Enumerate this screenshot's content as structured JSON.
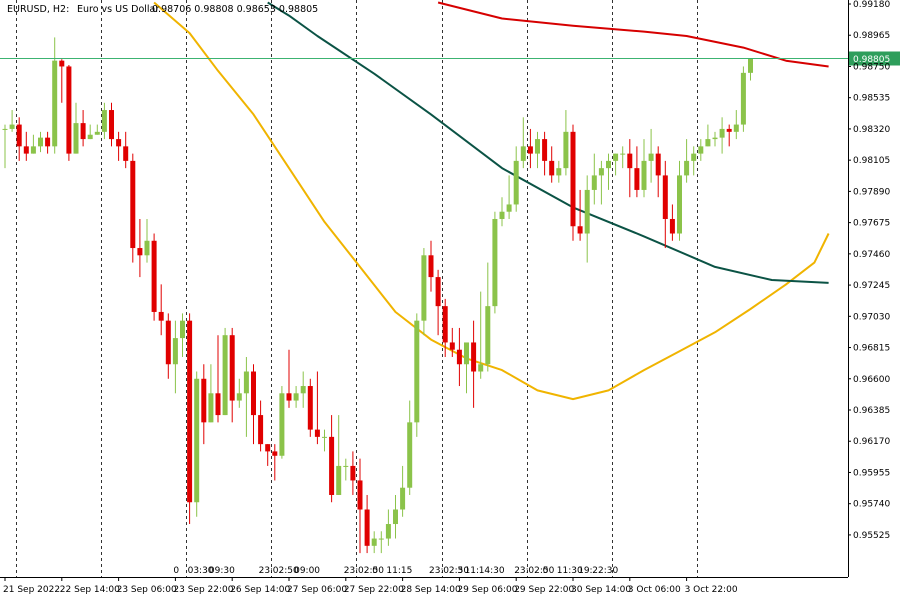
{
  "chart_data": {
    "type": "candlestick",
    "header": {
      "symbol": "EURUSD, H2:",
      "description": "Euro vs US Dollar",
      "ohlc": "0.98706 0.98808 0.98653 0.98805"
    },
    "y_ticks": [
      "0.99180",
      "0.98965",
      "0.98750",
      "0.98535",
      "0.98320",
      "0.98105",
      "0.97890",
      "0.97675",
      "0.97460",
      "0.97245",
      "0.97030",
      "0.96815",
      "0.96600",
      "0.96385",
      "0.96170",
      "0.95955",
      "0.95740",
      "0.95525"
    ],
    "ylim": [
      0.95435,
      0.9918
    ],
    "current_price_label": "0.98805",
    "current_price": 0.98805,
    "x_labels": [
      "21 Sep 2022",
      "22 Sep 14:00",
      "23 Sep 06:00",
      "23 Sep 22:00",
      "26 Sep 14:00",
      "27 Sep 06:00",
      "27 Sep 22:00",
      "28 Sep 14:00",
      "29 Sep 06:00",
      "29 Sep 22:00",
      "30 Sep 14:00",
      "3 Oct 06:00",
      "3 Oct 22:00"
    ],
    "x_label_index": [
      0,
      8,
      16,
      24,
      32,
      40,
      48,
      56,
      64,
      72,
      80,
      88,
      96
    ],
    "session_separators": [
      1,
      13,
      25,
      37,
      49,
      61,
      73,
      85,
      97
    ],
    "session_labels": [
      {
        "text": "0",
        "index": 24
      },
      {
        "text": "03:30",
        "index": 26
      },
      {
        "text": "09:30",
        "index": 29
      },
      {
        "text": "23:",
        "index": 36
      },
      {
        "text": "02:50",
        "index": 38
      },
      {
        "text": "09:00",
        "index": 41
      },
      {
        "text": "23:",
        "index": 48
      },
      {
        "text": "02:50",
        "index": 50
      },
      {
        "text": "0",
        "index": 52
      },
      {
        "text": "11:15",
        "index": 54
      },
      {
        "text": "23:",
        "index": 60
      },
      {
        "text": "02:50",
        "index": 62
      },
      {
        "text": "3",
        "index": 64
      },
      {
        "text": "11:",
        "index": 65
      },
      {
        "text": "14:30",
        "index": 67
      },
      {
        "text": "23:",
        "index": 72
      },
      {
        "text": "02:50",
        "index": 74
      },
      {
        "text": "0",
        "index": 76
      },
      {
        "text": "11:30",
        "index": 78
      },
      {
        "text": "19:",
        "index": 81
      },
      {
        "text": "22:30",
        "index": 83
      }
    ],
    "colors": {
      "bull": "#8bc34a",
      "bear": "#e00000",
      "ma_fast": "#f0b400",
      "ma_mid": "#0b5345",
      "ma_slow": "#d60000",
      "price_line": "#3cb371",
      "price_label_bg": "#2e9e5b"
    },
    "candles": [
      [
        0.9832,
        0.9832,
        0.9835,
        0.9805
      ],
      [
        0.9832,
        0.9835,
        0.9845,
        0.983
      ],
      [
        0.9835,
        0.982,
        0.984,
        0.981
      ],
      [
        0.982,
        0.9815,
        0.983,
        0.981
      ],
      [
        0.9815,
        0.982,
        0.9828,
        0.9815
      ],
      [
        0.982,
        0.9826,
        0.983,
        0.9816
      ],
      [
        0.9826,
        0.982,
        0.983,
        0.9815
      ],
      [
        0.982,
        0.9879,
        0.9895,
        0.9815
      ],
      [
        0.9879,
        0.9875,
        0.988,
        0.985
      ],
      [
        0.9875,
        0.9815,
        0.9876,
        0.981
      ],
      [
        0.9815,
        0.9836,
        0.985,
        0.9815
      ],
      [
        0.9836,
        0.9825,
        0.9845,
        0.982
      ],
      [
        0.9825,
        0.9828,
        0.9835,
        0.9825
      ],
      [
        0.9828,
        0.983,
        0.9835,
        0.9828
      ],
      [
        0.983,
        0.9845,
        0.985,
        0.9825
      ],
      [
        0.9845,
        0.9825,
        0.985,
        0.982
      ],
      [
        0.9825,
        0.982,
        0.983,
        0.981
      ],
      [
        0.982,
        0.981,
        0.983,
        0.9805
      ],
      [
        0.981,
        0.975,
        0.9815,
        0.974
      ],
      [
        0.975,
        0.9745,
        0.977,
        0.973
      ],
      [
        0.9745,
        0.9755,
        0.977,
        0.974
      ],
      [
        0.9755,
        0.9706,
        0.976,
        0.97
      ],
      [
        0.9706,
        0.97,
        0.9725,
        0.969
      ],
      [
        0.97,
        0.967,
        0.9705,
        0.966
      ],
      [
        0.967,
        0.9688,
        0.97,
        0.965
      ],
      [
        0.9688,
        0.97,
        0.9705,
        0.9675
      ],
      [
        0.97,
        0.9575,
        0.9705,
        0.956
      ],
      [
        0.9575,
        0.966,
        0.9665,
        0.9565
      ],
      [
        0.966,
        0.963,
        0.967,
        0.9615
      ],
      [
        0.963,
        0.965,
        0.967,
        0.963
      ],
      [
        0.965,
        0.9635,
        0.969,
        0.963
      ],
      [
        0.9635,
        0.969,
        0.9695,
        0.9635
      ],
      [
        0.969,
        0.9645,
        0.9695,
        0.963
      ],
      [
        0.9645,
        0.965,
        0.966,
        0.964
      ],
      [
        0.965,
        0.9665,
        0.9675,
        0.962
      ],
      [
        0.9665,
        0.9635,
        0.967,
        0.9615
      ],
      [
        0.9635,
        0.9615,
        0.9645,
        0.961
      ],
      [
        0.9615,
        0.961,
        0.9615,
        0.96
      ],
      [
        0.961,
        0.9607,
        0.9615,
        0.959
      ],
      [
        0.9607,
        0.965,
        0.9655,
        0.9605
      ],
      [
        0.965,
        0.9645,
        0.968,
        0.964
      ],
      [
        0.9645,
        0.965,
        0.9655,
        0.964
      ],
      [
        0.965,
        0.9655,
        0.9665,
        0.964
      ],
      [
        0.9655,
        0.9625,
        0.966,
        0.962
      ],
      [
        0.9625,
        0.962,
        0.9665,
        0.9615
      ],
      [
        0.962,
        0.962,
        0.9625,
        0.961
      ],
      [
        0.962,
        0.958,
        0.9635,
        0.9575
      ],
      [
        0.958,
        0.96,
        0.9635,
        0.958
      ],
      [
        0.96,
        0.96,
        0.9605,
        0.959
      ],
      [
        0.96,
        0.959,
        0.961,
        0.958
      ],
      [
        0.959,
        0.957,
        0.9605,
        0.954
      ],
      [
        0.957,
        0.9545,
        0.958,
        0.954
      ],
      [
        0.9545,
        0.955,
        0.9555,
        0.954
      ],
      [
        0.955,
        0.955,
        0.9555,
        0.954
      ],
      [
        0.955,
        0.956,
        0.957,
        0.9545
      ],
      [
        0.956,
        0.957,
        0.958,
        0.955
      ],
      [
        0.957,
        0.9585,
        0.96,
        0.9565
      ],
      [
        0.9585,
        0.963,
        0.9645,
        0.958
      ],
      [
        0.963,
        0.97,
        0.9705,
        0.962
      ],
      [
        0.97,
        0.9745,
        0.975,
        0.969
      ],
      [
        0.9745,
        0.973,
        0.9755,
        0.972
      ],
      [
        0.973,
        0.971,
        0.9735,
        0.969
      ],
      [
        0.971,
        0.9685,
        0.9715,
        0.9675
      ],
      [
        0.9685,
        0.968,
        0.9695,
        0.9675
      ],
      [
        0.968,
        0.967,
        0.9695,
        0.9655
      ],
      [
        0.967,
        0.9685,
        0.9685,
        0.965
      ],
      [
        0.9685,
        0.9665,
        0.97,
        0.964
      ],
      [
        0.9665,
        0.967,
        0.972,
        0.966
      ],
      [
        0.967,
        0.971,
        0.974,
        0.9665
      ],
      [
        0.971,
        0.977,
        0.9775,
        0.9705
      ],
      [
        0.977,
        0.9775,
        0.9785,
        0.9765
      ],
      [
        0.9775,
        0.978,
        0.98,
        0.977
      ],
      [
        0.978,
        0.981,
        0.982,
        0.9775
      ],
      [
        0.981,
        0.982,
        0.984,
        0.9805
      ],
      [
        0.982,
        0.9815,
        0.9832,
        0.9805
      ],
      [
        0.9815,
        0.9825,
        0.983,
        0.9805
      ],
      [
        0.9825,
        0.981,
        0.983,
        0.98
      ],
      [
        0.981,
        0.98,
        0.982,
        0.9795
      ],
      [
        0.98,
        0.9805,
        0.981,
        0.9795
      ],
      [
        0.9805,
        0.983,
        0.9845,
        0.98
      ],
      [
        0.983,
        0.9765,
        0.9835,
        0.9755
      ],
      [
        0.9765,
        0.976,
        0.979,
        0.9755
      ],
      [
        0.976,
        0.979,
        0.98,
        0.974
      ],
      [
        0.979,
        0.98,
        0.9815,
        0.978
      ],
      [
        0.98,
        0.9805,
        0.981,
        0.978
      ],
      [
        0.9805,
        0.981,
        0.9815,
        0.979
      ],
      [
        0.981,
        0.9815,
        0.9815,
        0.98
      ],
      [
        0.9815,
        0.9815,
        0.982,
        0.9805
      ],
      [
        0.9815,
        0.9805,
        0.9825,
        0.9785
      ],
      [
        0.9805,
        0.979,
        0.982,
        0.9785
      ],
      [
        0.979,
        0.981,
        0.9825,
        0.9785
      ],
      [
        0.981,
        0.9815,
        0.9832,
        0.9795
      ],
      [
        0.9815,
        0.98,
        0.982,
        0.9785
      ],
      [
        0.98,
        0.977,
        0.981,
        0.975
      ],
      [
        0.977,
        0.976,
        0.978,
        0.9755
      ],
      [
        0.976,
        0.98,
        0.981,
        0.9755
      ],
      [
        0.98,
        0.981,
        0.9825,
        0.9795
      ],
      [
        0.981,
        0.9815,
        0.982,
        0.98
      ],
      [
        0.9815,
        0.982,
        0.9825,
        0.981
      ],
      [
        0.982,
        0.9825,
        0.9835,
        0.982
      ],
      [
        0.9825,
        0.9826,
        0.983,
        0.982
      ],
      [
        0.9826,
        0.9832,
        0.984,
        0.9815
      ],
      [
        0.9832,
        0.983,
        0.9835,
        0.982
      ],
      [
        0.983,
        0.9835,
        0.9845,
        0.9825
      ],
      [
        0.9835,
        0.98706,
        0.9875,
        0.983
      ],
      [
        0.98706,
        0.98805,
        0.98808,
        0.98653
      ]
    ],
    "ma_slow_points": [
      [
        61,
        0.9919
      ],
      [
        70,
        0.9908
      ],
      [
        80,
        0.9903
      ],
      [
        90,
        0.9899
      ],
      [
        96,
        0.9896
      ],
      [
        104,
        0.9888
      ],
      [
        110,
        0.9879
      ],
      [
        116,
        0.9875
      ]
    ],
    "ma_mid_points": [
      [
        37,
        0.9919
      ],
      [
        40,
        0.991
      ],
      [
        44,
        0.9896
      ],
      [
        52,
        0.987
      ],
      [
        60,
        0.9842
      ],
      [
        70,
        0.9805
      ],
      [
        80,
        0.9778
      ],
      [
        90,
        0.9758
      ],
      [
        100,
        0.9737
      ],
      [
        108,
        0.9728
      ],
      [
        116,
        0.9726
      ]
    ],
    "ma_fast_points": [
      [
        21,
        0.9919
      ],
      [
        26,
        0.9898
      ],
      [
        30,
        0.9872
      ],
      [
        35,
        0.9842
      ],
      [
        40,
        0.9805
      ],
      [
        45,
        0.9768
      ],
      [
        50,
        0.9737
      ],
      [
        55,
        0.9706
      ],
      [
        60,
        0.9687
      ],
      [
        65,
        0.9674
      ],
      [
        70,
        0.9666
      ],
      [
        75,
        0.9652
      ],
      [
        80,
        0.9646
      ],
      [
        85,
        0.9652
      ],
      [
        90,
        0.9666
      ],
      [
        95,
        0.9679
      ],
      [
        100,
        0.9692
      ],
      [
        105,
        0.9708
      ],
      [
        110,
        0.9725
      ],
      [
        114,
        0.974
      ],
      [
        116,
        0.976
      ]
    ]
  }
}
